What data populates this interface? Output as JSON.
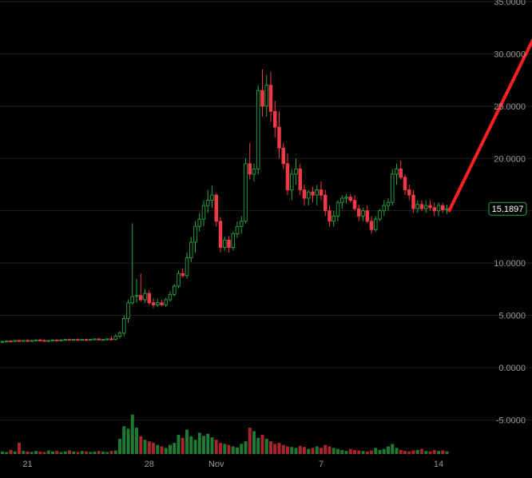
{
  "colors": {
    "background": "#000000",
    "grid": "#1f1f1f",
    "up": "#26a641",
    "down": "#ef3b45",
    "annotation": "#ff2020",
    "tag_border": "#26a641",
    "tag_bg": "#000000"
  },
  "chart_data": {
    "type": "candlestick",
    "title": "",
    "xlabel": "",
    "ylabel": "",
    "ylim": [
      -6.5,
      35
    ],
    "y_ticks": [
      "35.0000",
      "30.0000",
      "25.0000",
      "20.0000",
      "15.0000",
      "10.0000",
      "5.0000",
      "0.0000",
      "-5.0000"
    ],
    "y_tick_values": [
      35,
      30,
      25,
      20,
      15,
      10,
      5,
      0,
      -5
    ],
    "x_ticks": [
      "21",
      "28",
      "Nov",
      "7",
      "14"
    ],
    "x_tick_index": [
      6,
      35,
      51,
      76,
      104
    ],
    "last_price": "15.1897",
    "last_price_value": 15.1897,
    "candles": [
      [
        2.5,
        2.6,
        2.4,
        2.5
      ],
      [
        2.5,
        2.6,
        2.4,
        2.55
      ],
      [
        2.55,
        2.6,
        2.45,
        2.5
      ],
      [
        2.5,
        2.65,
        2.45,
        2.6
      ],
      [
        2.6,
        2.65,
        2.5,
        2.55
      ],
      [
        2.55,
        2.65,
        2.5,
        2.6
      ],
      [
        2.6,
        2.7,
        2.5,
        2.55
      ],
      [
        2.55,
        2.65,
        2.5,
        2.6
      ],
      [
        2.6,
        2.7,
        2.55,
        2.65
      ],
      [
        2.65,
        2.7,
        2.55,
        2.6
      ],
      [
        2.6,
        2.7,
        2.5,
        2.55
      ],
      [
        2.55,
        2.65,
        2.5,
        2.6
      ],
      [
        2.6,
        2.7,
        2.55,
        2.65
      ],
      [
        2.65,
        2.7,
        2.6,
        2.6
      ],
      [
        2.6,
        2.7,
        2.55,
        2.65
      ],
      [
        2.65,
        2.75,
        2.6,
        2.7
      ],
      [
        2.7,
        2.75,
        2.6,
        2.65
      ],
      [
        2.65,
        2.75,
        2.6,
        2.7
      ],
      [
        2.7,
        2.8,
        2.6,
        2.65
      ],
      [
        2.65,
        2.75,
        2.6,
        2.7
      ],
      [
        2.7,
        2.75,
        2.6,
        2.65
      ],
      [
        2.65,
        2.75,
        2.6,
        2.7
      ],
      [
        2.7,
        2.8,
        2.65,
        2.75
      ],
      [
        2.75,
        2.8,
        2.6,
        2.65
      ],
      [
        2.65,
        2.75,
        2.6,
        2.7
      ],
      [
        2.7,
        2.8,
        2.65,
        2.75
      ],
      [
        2.75,
        3.0,
        2.6,
        2.7
      ],
      [
        2.7,
        3.2,
        2.6,
        3.0
      ],
      [
        3.0,
        3.5,
        2.8,
        3.3
      ],
      [
        3.3,
        5.0,
        3.0,
        4.7
      ],
      [
        4.7,
        6.5,
        4.3,
        6.2
      ],
      [
        6.2,
        13.8,
        6.0,
        6.8
      ],
      [
        6.8,
        8.5,
        6.2,
        6.9
      ],
      [
        6.9,
        9.0,
        6.3,
        6.5
      ],
      [
        6.5,
        7.5,
        6.2,
        7.1
      ],
      [
        7.1,
        7.4,
        6.0,
        6.2
      ],
      [
        6.2,
        6.6,
        5.7,
        6.0
      ],
      [
        6.0,
        6.6,
        5.8,
        6.2
      ],
      [
        6.2,
        6.5,
        5.9,
        6.0
      ],
      [
        6.0,
        6.7,
        5.8,
        6.5
      ],
      [
        6.5,
        7.3,
        6.3,
        7.0
      ],
      [
        7.0,
        8.0,
        6.8,
        7.8
      ],
      [
        7.8,
        9.3,
        7.6,
        9.0
      ],
      [
        9.0,
        9.5,
        8.6,
        8.8
      ],
      [
        8.8,
        11.0,
        8.5,
        10.5
      ],
      [
        10.5,
        12.5,
        10.1,
        12.0
      ],
      [
        12.0,
        14.0,
        11.0,
        13.5
      ],
      [
        13.5,
        14.8,
        13.0,
        14.2
      ],
      [
        14.2,
        16.0,
        13.5,
        15.5
      ],
      [
        15.5,
        17.0,
        14.8,
        16.0
      ],
      [
        16.0,
        17.4,
        15.3,
        16.5
      ],
      [
        16.5,
        16.7,
        13.5,
        14.0
      ],
      [
        14.0,
        14.4,
        11.0,
        11.5
      ],
      [
        11.5,
        12.5,
        11.2,
        12.2
      ],
      [
        12.2,
        12.6,
        11.0,
        11.5
      ],
      [
        11.5,
        13.0,
        11.2,
        12.8
      ],
      [
        12.8,
        14.0,
        12.4,
        13.5
      ],
      [
        13.5,
        14.5,
        12.8,
        14.0
      ],
      [
        14.0,
        20.0,
        13.8,
        19.5
      ],
      [
        19.5,
        21.5,
        18.0,
        18.5
      ],
      [
        18.5,
        19.5,
        17.8,
        19.0
      ],
      [
        19.0,
        27.0,
        18.5,
        26.5
      ],
      [
        26.5,
        28.5,
        24.0,
        25.0
      ],
      [
        25.0,
        28.0,
        24.0,
        27.0
      ],
      [
        27.0,
        28.3,
        23.5,
        24.5
      ],
      [
        24.5,
        25.5,
        22.0,
        23.0
      ],
      [
        23.0,
        24.5,
        20.0,
        21.0
      ],
      [
        21.0,
        21.5,
        19.0,
        19.5
      ],
      [
        19.5,
        20.5,
        16.5,
        17.0
      ],
      [
        17.0,
        19.0,
        16.0,
        18.5
      ],
      [
        18.5,
        20.0,
        17.5,
        19.0
      ],
      [
        19.0,
        19.5,
        16.5,
        17.0
      ],
      [
        17.0,
        17.5,
        15.5,
        16.2
      ],
      [
        16.2,
        17.0,
        15.5,
        16.8
      ],
      [
        16.8,
        17.3,
        15.8,
        16.5
      ],
      [
        16.5,
        17.5,
        15.5,
        17.0
      ],
      [
        17.0,
        17.8,
        16.0,
        16.5
      ],
      [
        16.5,
        17.0,
        14.5,
        15.0
      ],
      [
        15.0,
        15.5,
        13.5,
        14.0
      ],
      [
        14.0,
        15.0,
        13.5,
        14.5
      ],
      [
        14.5,
        16.0,
        14.0,
        15.8
      ],
      [
        15.8,
        16.5,
        15.2,
        16.2
      ],
      [
        16.2,
        16.6,
        15.7,
        16.3
      ],
      [
        16.3,
        16.6,
        15.8,
        16.0
      ],
      [
        16.0,
        16.5,
        15.0,
        15.2
      ],
      [
        15.2,
        15.6,
        14.0,
        14.5
      ],
      [
        14.5,
        15.3,
        14.0,
        15.0
      ],
      [
        15.0,
        15.5,
        13.8,
        14.0
      ],
      [
        14.0,
        14.5,
        12.8,
        13.2
      ],
      [
        13.2,
        14.5,
        13.0,
        14.2
      ],
      [
        14.2,
        15.2,
        14.0,
        15.0
      ],
      [
        15.0,
        16.0,
        14.5,
        15.5
      ],
      [
        15.5,
        16.2,
        15.0,
        15.8
      ],
      [
        15.8,
        19.0,
        15.5,
        18.5
      ],
      [
        18.5,
        19.5,
        17.5,
        19.0
      ],
      [
        19.0,
        19.8,
        18.0,
        18.2
      ],
      [
        18.2,
        18.5,
        16.5,
        17.0
      ],
      [
        17.0,
        17.5,
        16.0,
        16.5
      ],
      [
        16.5,
        17.0,
        14.8,
        15.2
      ],
      [
        15.2,
        16.0,
        14.8,
        15.6
      ],
      [
        15.6,
        16.0,
        15.0,
        15.2
      ],
      [
        15.2,
        16.0,
        14.8,
        15.5
      ],
      [
        15.5,
        16.0,
        15.0,
        15.3
      ],
      [
        15.3,
        15.8,
        14.5,
        15.0
      ],
      [
        15.0,
        15.8,
        14.5,
        15.5
      ],
      [
        15.5,
        15.8,
        14.8,
        15.1
      ],
      [
        15.1,
        15.6,
        14.7,
        15.19
      ]
    ],
    "volumes": [
      0.05,
      0.04,
      0.08,
      0.05,
      0.22,
      0.06,
      0.05,
      0.04,
      0.06,
      0.05,
      0.04,
      0.07,
      0.05,
      0.06,
      0.04,
      0.05,
      0.07,
      0.05,
      0.04,
      0.06,
      0.05,
      0.04,
      0.05,
      0.06,
      0.05,
      0.04,
      0.06,
      0.07,
      0.3,
      0.55,
      0.5,
      0.78,
      0.52,
      0.35,
      0.28,
      0.25,
      0.22,
      0.18,
      0.15,
      0.12,
      0.18,
      0.22,
      0.38,
      0.32,
      0.48,
      0.35,
      0.28,
      0.42,
      0.36,
      0.4,
      0.33,
      0.28,
      0.22,
      0.2,
      0.18,
      0.15,
      0.13,
      0.2,
      0.25,
      0.52,
      0.45,
      0.32,
      0.38,
      0.3,
      0.25,
      0.2,
      0.22,
      0.18,
      0.15,
      0.14,
      0.12,
      0.16,
      0.14,
      0.1,
      0.12,
      0.15,
      0.12,
      0.18,
      0.15,
      0.12,
      0.1,
      0.08,
      0.06,
      0.1,
      0.08,
      0.07,
      0.06,
      0.05,
      0.07,
      0.12,
      0.08,
      0.1,
      0.15,
      0.2,
      0.12,
      0.08,
      0.06,
      0.05,
      0.07,
      0.08,
      0.1,
      0.06,
      0.05,
      0.08,
      0.06,
      0.07,
      0.05
    ]
  }
}
